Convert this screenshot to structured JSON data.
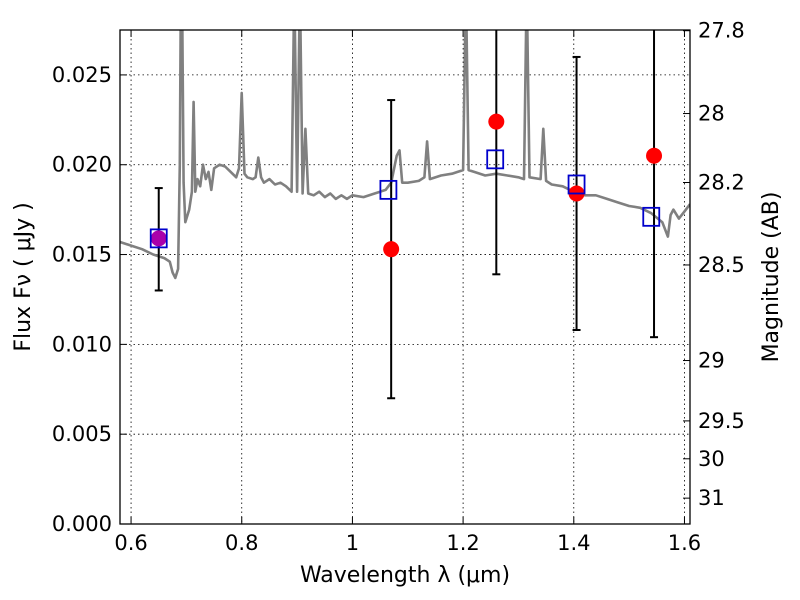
{
  "chart_data": {
    "type": "scatter",
    "xlabel": "Wavelength  λ (μm)",
    "ylabel": "Flux  Fν  ( μJy )",
    "ylabel_right": "Magnitude (AB)",
    "xlim": [
      0.58,
      1.61
    ],
    "ylim": [
      0.0,
      0.0275
    ],
    "grid": true,
    "x_ticks": [
      {
        "value": 0.6,
        "label": "0.6"
      },
      {
        "value": 0.8,
        "label": "0.8"
      },
      {
        "value": 1.0,
        "label": "1"
      },
      {
        "value": 1.2,
        "label": "1.2"
      },
      {
        "value": 1.4,
        "label": "1.4"
      },
      {
        "value": 1.6,
        "label": "1.6"
      }
    ],
    "y_ticks": [
      {
        "value": 0.0,
        "label": "0.000"
      },
      {
        "value": 0.005,
        "label": "0.005"
      },
      {
        "value": 0.01,
        "label": "0.010"
      },
      {
        "value": 0.015,
        "label": "0.015"
      },
      {
        "value": 0.02,
        "label": "0.020"
      },
      {
        "value": 0.025,
        "label": "0.025"
      }
    ],
    "right_ticks": [
      {
        "flux": 0.02746,
        "label": "27.8"
      },
      {
        "flux": 0.02285,
        "label": "28"
      },
      {
        "flux": 0.01901,
        "label": "28.2"
      },
      {
        "flux": 0.01442,
        "label": "28.5"
      },
      {
        "flux": 0.0091,
        "label": "29"
      },
      {
        "flux": 0.00574,
        "label": "29.5"
      },
      {
        "flux": 0.00363,
        "label": "30"
      },
      {
        "flux": 0.00144,
        "label": "31"
      }
    ],
    "model_spectrum": {
      "color": "#808080",
      "points": [
        [
          0.58,
          0.0157
        ],
        [
          0.6,
          0.0155
        ],
        [
          0.62,
          0.0153
        ],
        [
          0.64,
          0.015
        ],
        [
          0.66,
          0.0148
        ],
        [
          0.67,
          0.0146
        ],
        [
          0.675,
          0.014
        ],
        [
          0.68,
          0.0137
        ],
        [
          0.685,
          0.0142
        ],
        [
          0.688,
          0.02
        ],
        [
          0.69,
          0.03
        ],
        [
          0.692,
          0.03
        ],
        [
          0.695,
          0.019
        ],
        [
          0.698,
          0.0168
        ],
        [
          0.705,
          0.0175
        ],
        [
          0.71,
          0.0185
        ],
        [
          0.713,
          0.0235
        ],
        [
          0.716,
          0.0185
        ],
        [
          0.72,
          0.0192
        ],
        [
          0.725,
          0.0188
        ],
        [
          0.73,
          0.02
        ],
        [
          0.735,
          0.0192
        ],
        [
          0.74,
          0.0196
        ],
        [
          0.745,
          0.0186
        ],
        [
          0.75,
          0.0198
        ],
        [
          0.76,
          0.02
        ],
        [
          0.77,
          0.0199
        ],
        [
          0.78,
          0.0196
        ],
        [
          0.79,
          0.0193
        ],
        [
          0.795,
          0.0198
        ],
        [
          0.8,
          0.024
        ],
        [
          0.805,
          0.0195
        ],
        [
          0.81,
          0.0193
        ],
        [
          0.82,
          0.0192
        ],
        [
          0.825,
          0.0193
        ],
        [
          0.83,
          0.0204
        ],
        [
          0.835,
          0.0193
        ],
        [
          0.84,
          0.019
        ],
        [
          0.85,
          0.0192
        ],
        [
          0.86,
          0.0189
        ],
        [
          0.87,
          0.019
        ],
        [
          0.88,
          0.0188
        ],
        [
          0.89,
          0.0185
        ],
        [
          0.895,
          0.03
        ],
        [
          0.9,
          0.0185
        ],
        [
          0.905,
          0.03
        ],
        [
          0.91,
          0.0184
        ],
        [
          0.915,
          0.022
        ],
        [
          0.92,
          0.0184
        ],
        [
          0.93,
          0.0183
        ],
        [
          0.94,
          0.0185
        ],
        [
          0.95,
          0.0182
        ],
        [
          0.96,
          0.0184
        ],
        [
          0.97,
          0.0181
        ],
        [
          0.98,
          0.0183
        ],
        [
          0.99,
          0.0181
        ],
        [
          1.0,
          0.0183
        ],
        [
          1.02,
          0.0182
        ],
        [
          1.04,
          0.0184
        ],
        [
          1.06,
          0.0186
        ],
        [
          1.07,
          0.019
        ],
        [
          1.08,
          0.0205
        ],
        [
          1.085,
          0.0208
        ],
        [
          1.09,
          0.019
        ],
        [
          1.1,
          0.019
        ],
        [
          1.12,
          0.0191
        ],
        [
          1.13,
          0.0193
        ],
        [
          1.135,
          0.0213
        ],
        [
          1.14,
          0.0192
        ],
        [
          1.16,
          0.0194
        ],
        [
          1.18,
          0.0195
        ],
        [
          1.19,
          0.0196
        ],
        [
          1.2,
          0.0197
        ],
        [
          1.205,
          0.03
        ],
        [
          1.21,
          0.0197
        ],
        [
          1.22,
          0.0196
        ],
        [
          1.24,
          0.0194
        ],
        [
          1.26,
          0.0195
        ],
        [
          1.28,
          0.0194
        ],
        [
          1.3,
          0.0193
        ],
        [
          1.31,
          0.0192
        ],
        [
          1.315,
          0.03
        ],
        [
          1.32,
          0.0193
        ],
        [
          1.34,
          0.0192
        ],
        [
          1.345,
          0.022
        ],
        [
          1.35,
          0.0191
        ],
        [
          1.36,
          0.0189
        ],
        [
          1.38,
          0.0188
        ],
        [
          1.4,
          0.0185
        ],
        [
          1.42,
          0.0183
        ],
        [
          1.44,
          0.0183
        ],
        [
          1.46,
          0.0181
        ],
        [
          1.48,
          0.0179
        ],
        [
          1.5,
          0.0177
        ],
        [
          1.52,
          0.0176
        ],
        [
          1.54,
          0.0173
        ],
        [
          1.56,
          0.0168
        ],
        [
          1.57,
          0.016
        ],
        [
          1.575,
          0.0172
        ],
        [
          1.58,
          0.0175
        ],
        [
          1.59,
          0.017
        ],
        [
          1.6,
          0.0174
        ],
        [
          1.61,
          0.0178
        ]
      ]
    },
    "series": [
      {
        "marker": "circle",
        "color": "#ff0000",
        "points": [
          {
            "x": 0.65,
            "y": 0.0159,
            "err_low": 0.013,
            "err_high": 0.0187
          },
          {
            "x": 1.07,
            "y": 0.0153,
            "err_low": 0.007,
            "err_high": 0.0236
          },
          {
            "x": 1.26,
            "y": 0.0224,
            "err_low": 0.0139,
            "err_high": 0.028
          },
          {
            "x": 1.405,
            "y": 0.0184,
            "err_low": 0.0108,
            "err_high": 0.026
          },
          {
            "x": 1.545,
            "y": 0.0205,
            "err_low": 0.0104,
            "err_high": 0.028
          }
        ]
      },
      {
        "marker": "square",
        "color": "#0000cc",
        "points": [
          {
            "x": 0.65,
            "y": 0.0159
          },
          {
            "x": 1.065,
            "y": 0.0186
          },
          {
            "x": 1.258,
            "y": 0.0203
          },
          {
            "x": 1.405,
            "y": 0.0189
          },
          {
            "x": 1.54,
            "y": 0.0171
          }
        ]
      }
    ],
    "overlap_color": "#aa00aa"
  }
}
